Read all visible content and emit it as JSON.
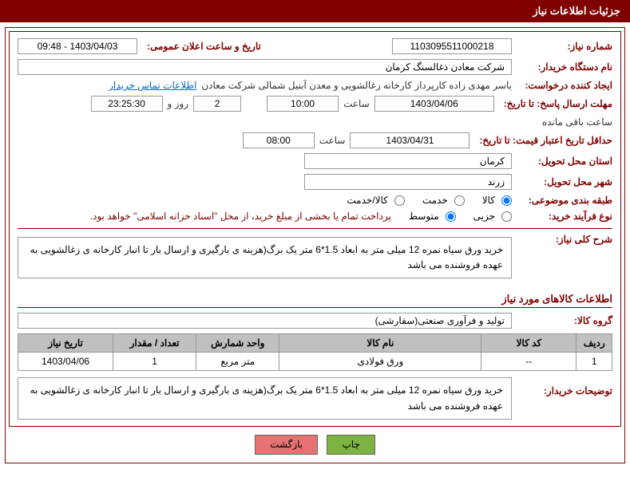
{
  "header": {
    "title": "جزئیات اطلاعات نیاز"
  },
  "fields": {
    "need_number_label": "شماره نیاز:",
    "need_number": "1103095511000218",
    "announce_datetime_label": "تاریخ و ساعت اعلان عمومی:",
    "announce_datetime": "1403/04/03 - 09:48",
    "buyer_org_label": "نام دستگاه خریدار:",
    "buyer_org": "شرکت معادن ذغالسنگ کرمان",
    "requester_label": "ایجاد کننده درخواست:",
    "requester": "یاسر مهدی زاده کارپرداز کارخانه زغالشویی و معدن آبنیل شمالی  شرکت معادن",
    "contact_link": "اطلاعات تماس خریدار",
    "deadline_label": "مهلت ارسال پاسخ: تا تاریخ:",
    "deadline_date": "1403/04/06",
    "time_label": "ساعت",
    "deadline_time": "10:00",
    "days_label_suffix": "روز و",
    "days": "2",
    "countdown": "23:25:30",
    "remaining_label": "ساعت باقی مانده",
    "validity_label": "حداقل تاریخ اعتبار قیمت: تا تاریخ:",
    "validity_date": "1403/04/31",
    "validity_time": "08:00",
    "province_label": "استان محل تحویل:",
    "province": "کرمان",
    "city_label": "شهر محل تحویل:",
    "city": "زرند",
    "category_label": "طبقه بندی موضوعی:",
    "cat_goods": "کالا",
    "cat_service": "خدمت",
    "cat_both": "کالا/خدمت",
    "process_label": "نوع فرآیند خرید:",
    "proc_small": "جزیی",
    "proc_medium": "متوسط",
    "payment_note": "پرداخت تمام یا بخشی از مبلغ خرید، از محل \"اسناد خزانه اسلامی\" خواهد بود.",
    "summary_label": "شرح کلی نیاز:",
    "summary_text": "خرید ورق سیاه نمره 12 میلی متر به ابعاد 1.5*6 متر یک برگ(هزینه ی بارگیری و ارسال بار تا انبار کارخانه ی زغالشویی به عهده فروشنده می باشد",
    "goods_info_title": "اطلاعات کالاهای مورد نیاز",
    "group_label": "گروه کالا:",
    "group_value": "تولید و فرآوری صنعتی(سفارشی)",
    "buyer_desc_label": "توضیحات خریدار:",
    "buyer_desc": "خرید ورق سیاه نمره 12 میلی متر به ابعاد 1.5*6 متر یک برگ(هزینه ی بارگیری و ارسال بار تا انبار کارخانه ی زغالشویی به عهده فروشنده می باشد"
  },
  "table": {
    "columns": [
      "ردیف",
      "کد کالا",
      "نام کالا",
      "واحد شمارش",
      "تعداد / مقدار",
      "تاریخ نیاز"
    ],
    "rows": [
      [
        "1",
        "--",
        "ورق فولادی",
        "متر مربع",
        "1",
        "1403/04/06"
      ]
    ],
    "col_widths": [
      "6%",
      "16%",
      "34%",
      "14%",
      "14%",
      "16%"
    ]
  },
  "buttons": {
    "print": "چاپ",
    "back": "بازگشت"
  },
  "colors": {
    "maroon": "#800000",
    "header_bg": "#c0c0c0",
    "link": "#0066cc",
    "btn_green": "#7cb342",
    "btn_pink": "#e57373"
  }
}
